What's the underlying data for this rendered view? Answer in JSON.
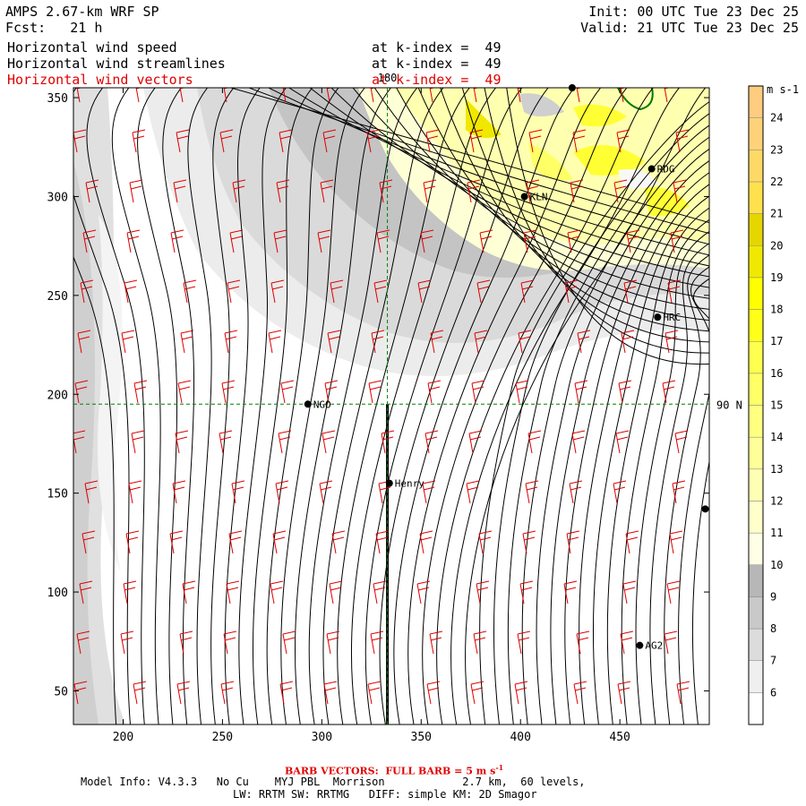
{
  "header": {
    "title": "AMPS 2.67-km WRF SP",
    "fcst": "Fcst:   21 h",
    "init": "Init: 00 UTC Tue 23 Dec 25",
    "valid": "Valid: 21 UTC Tue 23 Dec 25",
    "fields": [
      {
        "name": "Horizontal wind speed",
        "level": "at k-index =  49",
        "color": "#000000"
      },
      {
        "name": "Horizontal wind streamlines",
        "level": "at k-index =  49",
        "color": "#000000"
      },
      {
        "name": "Horizontal wind vectors",
        "level": "at k-index =  49",
        "color": "#e00000"
      }
    ]
  },
  "map": {
    "x_range": [
      175,
      495
    ],
    "y_range": [
      33,
      355
    ],
    "x_ticks": [
      200,
      250,
      300,
      350,
      400,
      450
    ],
    "y_ticks": [
      50,
      100,
      150,
      200,
      250,
      300,
      350
    ],
    "meridian_label": "180",
    "meridian_x": 333,
    "parallel_label": "90 N",
    "parallel_y": 195,
    "stations": [
      {
        "name": "NGO",
        "x": 293,
        "y": 195
      },
      {
        "name": "Henry",
        "x": 334,
        "y": 155
      },
      {
        "name": "KLN",
        "x": 402,
        "y": 300
      },
      {
        "name": "RDG",
        "x": 466,
        "y": 314
      },
      {
        "name": "HRC",
        "x": 469,
        "y": 239
      },
      {
        "name": "AG2",
        "x": 460,
        "y": 73
      },
      {
        "name": "",
        "x": 426,
        "y": 355
      },
      {
        "name": "",
        "x": 493,
        "y": 142
      }
    ]
  },
  "colorbar": {
    "unit": "m s-1",
    "levels": [
      6,
      7,
      8,
      9,
      10,
      11,
      12,
      13,
      14,
      15,
      16,
      17,
      18,
      19,
      20,
      21,
      22,
      23,
      24
    ],
    "colors": [
      "#ffffff",
      "#efefef",
      "#dcdcdc",
      "#c9c9c9",
      "#b7b7b7",
      "#ffffe6",
      "#ffffcc",
      "#ffffb3",
      "#ffff99",
      "#ffff80",
      "#ffff66",
      "#ffff4d",
      "#ffff1a",
      "#ffff00",
      "#f0e800",
      "#e6d600",
      "#ffe14d",
      "#ffd966",
      "#ffd27a",
      "#ffcc80"
    ]
  },
  "footer": {
    "barb_note": "BARB VECTORS:  FULL BARB = 5 m s",
    "barb_sup": "-1",
    "model_info": "Model Info: V4.3.3   No Cu    MYJ PBL  Morrison            2.7 km,  60 levels,",
    "physics": "LW: RRTM SW: RRTMG   DIFF: simple KM: 2D Smagor"
  }
}
